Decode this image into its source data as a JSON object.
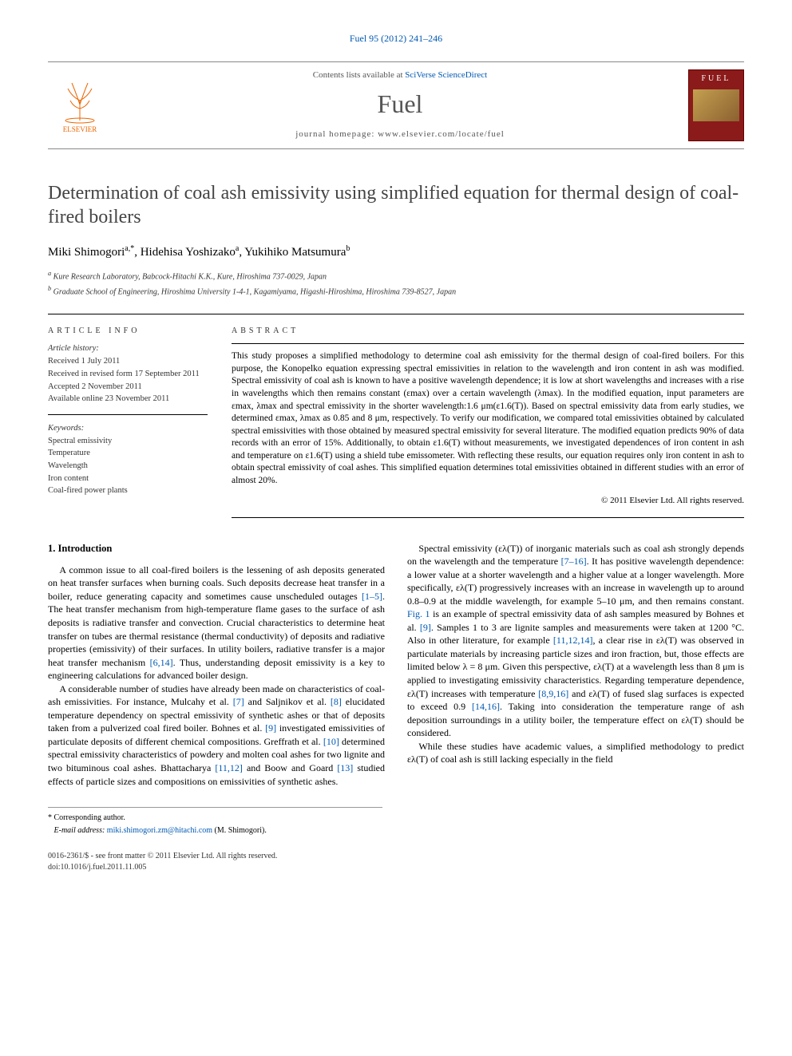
{
  "journalRef": {
    "text": "Fuel 95 (2012) 241–246",
    "color": "#0059b3"
  },
  "header": {
    "contentsLine": {
      "prefix": "Contents lists available at ",
      "link": "SciVerse ScienceDirect"
    },
    "journalName": "Fuel",
    "homepageLine": {
      "prefix": "journal homepage: ",
      "url": "www.elsevier.com/locate/fuel"
    },
    "publisherName": "ELSEVIER",
    "coverTitle": "FUEL"
  },
  "title": "Determination of coal ash emissivity using simplified equation for thermal design of coal-fired boilers",
  "authors": [
    {
      "name": "Miki Shimogori",
      "markers": "a,*"
    },
    {
      "name": "Hidehisa Yoshizako",
      "markers": "a"
    },
    {
      "name": "Yukihiko Matsumura",
      "markers": "b"
    }
  ],
  "authorSeparator": ", ",
  "affiliations": [
    {
      "marker": "a",
      "text": "Kure Research Laboratory, Babcock-Hitachi K.K., Kure, Hiroshima 737-0029, Japan"
    },
    {
      "marker": "b",
      "text": "Graduate School of Engineering, Hiroshima University 1-4-1, Kagamiyama, Higashi-Hiroshima, Hiroshima 739-8527, Japan"
    }
  ],
  "articleInfo": {
    "heading": "ARTICLE INFO",
    "historyLabel": "Article history:",
    "history": [
      "Received 1 July 2011",
      "Received in revised form 17 September 2011",
      "Accepted 2 November 2011",
      "Available online 23 November 2011"
    ],
    "keywordsLabel": "Keywords:",
    "keywords": [
      "Spectral emissivity",
      "Temperature",
      "Wavelength",
      "Iron content",
      "Coal-fired power plants"
    ]
  },
  "abstract": {
    "heading": "ABSTRACT",
    "text": "This study proposes a simplified methodology to determine coal ash emissivity for the thermal design of coal-fired boilers. For this purpose, the Konopelko equation expressing spectral emissivities in relation to the wavelength and iron content in ash was modified. Spectral emissivity of coal ash is known to have a positive wavelength dependence; it is low at short wavelengths and increases with a rise in wavelengths which then remains constant (εmax) over a certain wavelength (λmax). In the modified equation, input parameters are εmax, λmax and spectral emissivity in the shorter wavelength:1.6 μm(ε1.6(T)). Based on spectral emissivity data from early studies, we determined εmax, λmax as 0.85 and 8 μm, respectively. To verify our modification, we compared total emissivities obtained by calculated spectral emissivities with those obtained by measured spectral emissivity for several literature. The modified equation predicts 90% of data records with an error of 15%. Additionally, to obtain ε1.6(T) without measurements, we investigated dependences of iron content in ash and temperature on ε1.6(T) using a shield tube emissometer. With reflecting these results, our equation requires only iron content in ash to obtain spectral emissivity of coal ashes. This simplified equation determines total emissivities obtained in different studies with an error of almost 20%.",
    "copyright": "© 2011 Elsevier Ltd. All rights reserved."
  },
  "sections": {
    "s1": {
      "heading": "1. Introduction",
      "paragraphs": [
        "A common issue to all coal-fired boilers is the lessening of ash deposits generated on heat transfer surfaces when burning coals. Such deposits decrease heat transfer in a boiler, reduce generating capacity and sometimes cause unscheduled outages [1–5]. The heat transfer mechanism from high-temperature flame gases to the surface of ash deposits is radiative transfer and convection. Crucial characteristics to determine heat transfer on tubes are thermal resistance (thermal conductivity) of deposits and radiative properties (emissivity) of their surfaces. In utility boilers, radiative transfer is a major heat transfer mechanism [6,14]. Thus, understanding deposit emissivity is a key to engineering calculations for advanced boiler design.",
        "A considerable number of studies have already been made on characteristics of coal-ash emissivities. For instance, Mulcahy et al. [7] and Saljnikov et al. [8] elucidated temperature dependency on spectral emissivity of synthetic ashes or that of deposits taken from a pulverized coal fired boiler. Bohnes et al. [9] investigated emissivities of particulate deposits of different chemical compositions. Greffrath et al. [10] determined spectral emissivity characteristics of powdery and molten coal ashes for two lignite and two bituminous coal ashes. Bhattacharya [11,12] and Boow and Goard [13] studied effects of particle sizes and compositions on emissivities of synthetic ashes.",
        "Spectral emissivity (ελ(T)) of inorganic materials such as coal ash strongly depends on the wavelength and the temperature [7–16]. It has positive wavelength dependence: a lower value at a shorter wavelength and a higher value at a longer wavelength. More specifically, ελ(T) progressively increases with an increase in wavelength up to around 0.8–0.9 at the middle wavelength, for example 5–10 μm, and then remains constant. Fig. 1 is an example of spectral emissivity data of ash samples measured by Bohnes et al. [9]. Samples 1 to 3 are lignite samples and measurements were taken at 1200 °C. Also in other literature, for example [11,12,14], a clear rise in ελ(T) was observed in particulate materials by increasing particle sizes and iron fraction, but, those effects are limited below λ = 8 μm. Given this perspective, ελ(T) at a wavelength less than 8 μm is applied to investigating emissivity characteristics. Regarding temperature dependence, ελ(T) increases with temperature [8,9,16] and ελ(T) of fused slag surfaces is expected to exceed 0.9 [14,16]. Taking into consideration the temperature range of ash deposition surroundings in a utility boiler, the temperature effect on ελ(T) should be considered.",
        "While these studies have academic values, a simplified methodology to predict ελ(T) of coal ash is still lacking especially in the field"
      ]
    }
  },
  "refLinkColor": "#0059b3",
  "correspondence": {
    "marker": "*",
    "label": "Corresponding author.",
    "emailLabel": "E-mail address:",
    "email": "miki.shimogori.zm@hitachi.com",
    "emailName": "(M. Shimogori)."
  },
  "footer": {
    "left1": "0016-2361/$ - see front matter © 2011 Elsevier Ltd. All rights reserved.",
    "left2": "doi:10.1016/j.fuel.2011.11.005"
  },
  "colors": {
    "link": "#0059b3",
    "elsevierOrange": "#ec6500",
    "coverRed": "#8b1a1a",
    "text": "#000000",
    "muted": "#555555",
    "rule": "#000000"
  },
  "typography": {
    "bodyFont": "Georgia, 'Times New Roman', serif",
    "titleSize": 24,
    "journalNameSize": 32,
    "bodySize": 12,
    "abstractSize": 11.5,
    "infoSize": 10.5,
    "footnoteSize": 10
  }
}
